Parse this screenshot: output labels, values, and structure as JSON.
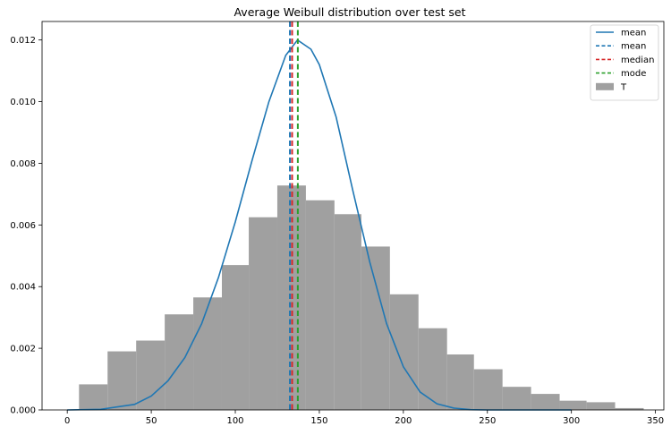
{
  "chart_data": {
    "type": "bar",
    "title": "Average Weibull distribution over test set",
    "xlabel": "",
    "ylabel": "",
    "xlim": [
      -15,
      355
    ],
    "ylim": [
      0,
      0.0126
    ],
    "x_ticks": [
      0,
      50,
      100,
      150,
      200,
      250,
      300,
      350
    ],
    "y_ticks": [
      0.0,
      0.002,
      0.004,
      0.006,
      0.008,
      0.01,
      0.012
    ],
    "grid": false,
    "legend_position": "top-right",
    "histogram": {
      "name": "T",
      "color": "#a0a0a0",
      "bin_edges": [
        7,
        24,
        41,
        58,
        75,
        92,
        108,
        125,
        142,
        159,
        175,
        192,
        209,
        226,
        242,
        259,
        276,
        293,
        309,
        326,
        343
      ],
      "values": [
        0.00083,
        0.0019,
        0.00225,
        0.0031,
        0.00365,
        0.0047,
        0.00625,
        0.00728,
        0.0068,
        0.00635,
        0.0053,
        0.00375,
        0.00265,
        0.0018,
        0.00132,
        0.00075,
        0.00052,
        0.0003,
        0.00025,
        6e-05
      ]
    },
    "series": [
      {
        "name": "mean",
        "type": "line",
        "color": "#1f77b4",
        "x": [
          0,
          20,
          40,
          50,
          60,
          70,
          80,
          90,
          100,
          110,
          120,
          130,
          137,
          145,
          150,
          160,
          170,
          180,
          190,
          200,
          210,
          220,
          230,
          240,
          250,
          260,
          280,
          300
        ],
        "y": [
          0.0,
          2e-05,
          0.00018,
          0.00045,
          0.00095,
          0.0017,
          0.0028,
          0.0043,
          0.0061,
          0.0081,
          0.01,
          0.0115,
          0.012,
          0.0117,
          0.0112,
          0.0095,
          0.0071,
          0.0048,
          0.0028,
          0.0014,
          0.00058,
          0.0002,
          6e-05,
          1e-05,
          0.0,
          0.0,
          0.0,
          0.0
        ]
      }
    ],
    "vlines": [
      {
        "name": "mean",
        "x": 132.5,
        "color": "#1f77b4"
      },
      {
        "name": "median",
        "x": 133.8,
        "color": "#d62728"
      },
      {
        "name": "mode",
        "x": 137.2,
        "color": "#2ca02c"
      }
    ],
    "legend": [
      {
        "label": "mean",
        "style": "solid",
        "color": "#1f77b4"
      },
      {
        "label": "mean",
        "style": "dashed",
        "color": "#1f77b4"
      },
      {
        "label": "median",
        "style": "dashed",
        "color": "#d62728"
      },
      {
        "label": "mode",
        "style": "dashed",
        "color": "#2ca02c"
      },
      {
        "label": "T",
        "style": "patch",
        "color": "#a0a0a0"
      }
    ]
  }
}
